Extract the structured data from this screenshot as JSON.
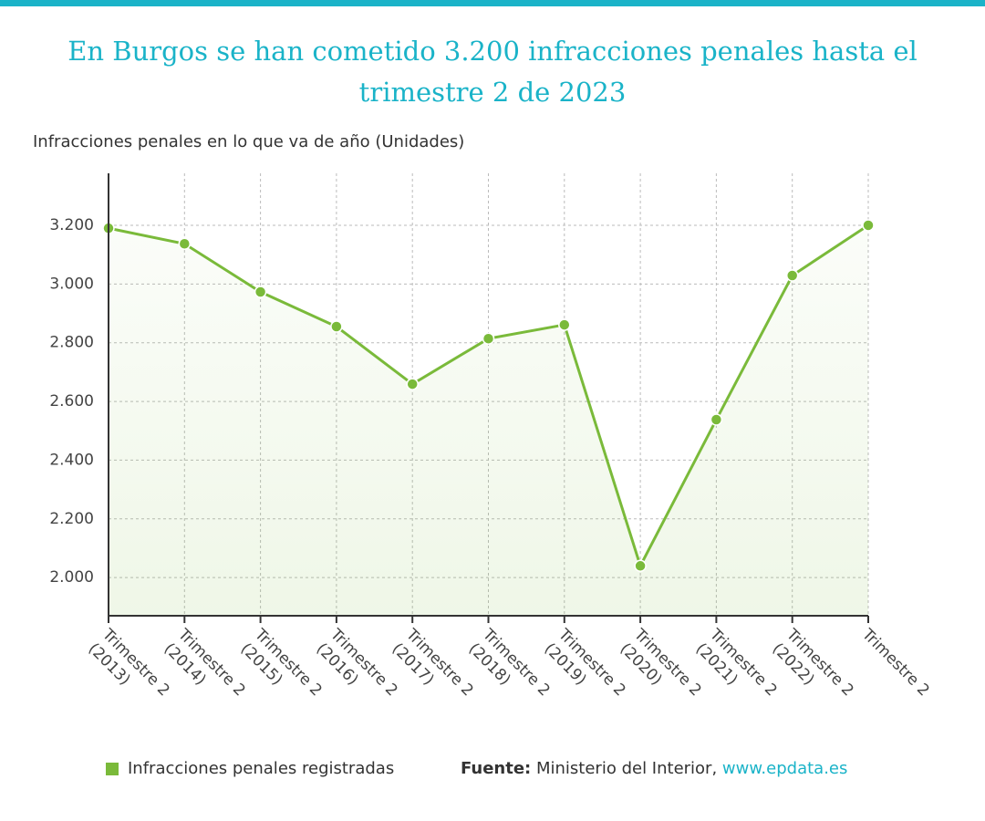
{
  "chart_data": {
    "type": "line",
    "title": "En Burgos se han cometido 3.200 infracciones penales hasta el trimestre 2 de 2023",
    "subtitle": "Infracciones penales en lo que va de año (Unidades)",
    "categories": [
      "Trimestre 2 (2013)",
      "Trimestre 2 (2014)",
      "Trimestre 2 (2015)",
      "Trimestre 2 (2016)",
      "Trimestre 2 (2017)",
      "Trimestre 2 (2018)",
      "Trimestre 2 (2019)",
      "Trimestre 2 (2020)",
      "Trimestre 2 (2021)",
      "Trimestre 2 (2022)",
      "Trimestre 2"
    ],
    "series": [
      {
        "name": "Infracciones penales registradas",
        "color": "#7aba3a",
        "values": [
          3190,
          3137,
          2973,
          2855,
          2659,
          2814,
          2861,
          2040,
          2538,
          3029,
          3200
        ]
      }
    ],
    "ylim": [
      1870,
      3377
    ],
    "yticks": [
      {
        "value": 2000,
        "label": "2.000"
      },
      {
        "value": 2200,
        "label": "2.200"
      },
      {
        "value": 2400,
        "label": "2.400"
      },
      {
        "value": 2600,
        "label": "2.600"
      },
      {
        "value": 2800,
        "label": "2.800"
      },
      {
        "value": 3000,
        "label": "3.000"
      },
      {
        "value": 3200,
        "label": "3.200"
      }
    ],
    "grid": true,
    "source": {
      "label": "Fuente:",
      "text": "Ministerio del Interior,",
      "link": "www.epdata.es"
    }
  }
}
